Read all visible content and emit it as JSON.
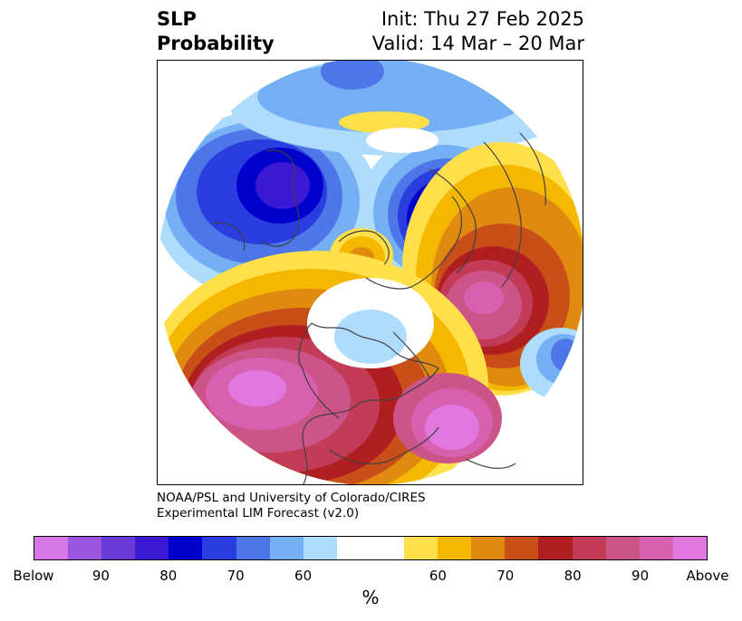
{
  "header": {
    "variable_line1": "SLP",
    "variable_line2": "Probability",
    "init": "Init: Thu 27 Feb 2025",
    "valid": "Valid: 14 Mar – 20 Mar"
  },
  "credit": {
    "line1": "NOAA/PSL and University of Colorado/CIRES",
    "line2": "Experimental LIM Forecast (v2.0)"
  },
  "colorbar": {
    "unit": "%",
    "colors": [
      "#d878e8",
      "#9c55e0",
      "#6a3ad8",
      "#3a18d4",
      "#0000cc",
      "#2a3ee0",
      "#4f76e8",
      "#76b0f4",
      "#aedcfc",
      "#ffffff",
      "#ffffff",
      "#ffe04a",
      "#f4b800",
      "#e08a10",
      "#c85018",
      "#b01e20",
      "#c23c58",
      "#cc5488",
      "#d860b0",
      "#e078e0"
    ],
    "tick_labels": [
      "Below",
      "90",
      "80",
      "70",
      "60",
      "60",
      "70",
      "80",
      "90",
      "Above"
    ]
  },
  "map": {
    "projection": "north-polar-stereographic",
    "palette": {
      "below_far": "#d878e8",
      "below_90": "#9c55e0",
      "below_85": "#6a3ad8",
      "below_80": "#3a18d4",
      "below_75": "#0000cc",
      "below_70": "#2a3ee0",
      "below_65": "#4f76e8",
      "below_60": "#76b0f4",
      "below_55": "#aedcfc",
      "neutral": "#ffffff",
      "above_55": "#ffe04a",
      "above_60": "#f4b800",
      "above_65": "#e08a10",
      "above_70": "#c85018",
      "above_75": "#b01e20",
      "above_80": "#c23c58",
      "above_85": "#cc5488",
      "above_90": "#d860b0",
      "above_far": "#e078e0",
      "coast": "#404040"
    }
  }
}
